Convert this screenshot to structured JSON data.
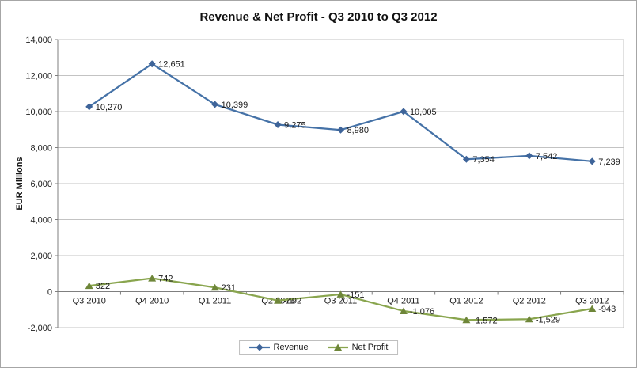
{
  "chart_data": {
    "type": "line",
    "title": "Revenue & Net Profit - Q3 2010 to Q3 2012",
    "xlabel": "",
    "ylabel": "EUR Millions",
    "categories": [
      "Q3 2010",
      "Q4 2010",
      "Q1 2011",
      "Q2 2011",
      "Q3 2011",
      "Q4 2011",
      "Q1 2012",
      "Q2 2012",
      "Q3 2012"
    ],
    "series": [
      {
        "name": "Revenue",
        "color": "#4572A7",
        "marker_color": "#3E6499",
        "marker": "diamond",
        "values": [
          10270,
          12651,
          10399,
          9275,
          8980,
          10005,
          7354,
          7542,
          7239
        ],
        "labels": [
          "10,270",
          "12,651",
          "10,399",
          "9,275",
          "8,980",
          "10,005",
          "7,354",
          "7,542",
          "7,239"
        ]
      },
      {
        "name": "Net Profit",
        "color": "#89A54E",
        "marker_color": "#6E8639",
        "marker": "triangle",
        "values": [
          322,
          742,
          231,
          -492,
          -151,
          -1076,
          -1572,
          -1529,
          -943
        ],
        "labels": [
          "322",
          "742",
          "231",
          "-492",
          "-151",
          "-1,076",
          "-1,572",
          "-1,529",
          "-943"
        ]
      }
    ],
    "ylim": [
      -2000,
      14000
    ],
    "ytick_step": 2000,
    "grid": true,
    "legend_position": "bottom",
    "colors": {
      "gridline": "#C3C3C3",
      "axis": "#7F7F7F",
      "text": "#1a1a1a"
    }
  }
}
